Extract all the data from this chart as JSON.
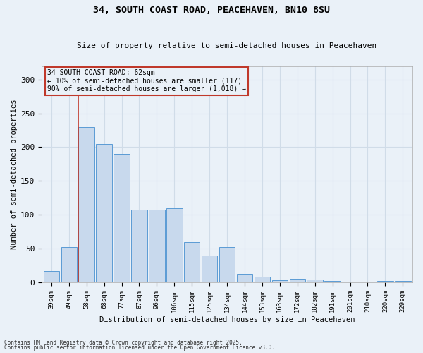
{
  "title1": "34, SOUTH COAST ROAD, PEACEHAVEN, BN10 8SU",
  "title2": "Size of property relative to semi-detached houses in Peacehaven",
  "xlabel": "Distribution of semi-detached houses by size in Peacehaven",
  "ylabel": "Number of semi-detached properties",
  "bar_color": "#c8d9ed",
  "bar_edge_color": "#5b9bd5",
  "categories": [
    "39sqm",
    "49sqm",
    "58sqm",
    "68sqm",
    "77sqm",
    "87sqm",
    "96sqm",
    "106sqm",
    "115sqm",
    "125sqm",
    "134sqm",
    "144sqm",
    "153sqm",
    "163sqm",
    "172sqm",
    "182sqm",
    "191sqm",
    "201sqm",
    "210sqm",
    "220sqm",
    "229sqm"
  ],
  "values": [
    17,
    52,
    230,
    205,
    190,
    108,
    108,
    110,
    60,
    40,
    52,
    13,
    8,
    3,
    5,
    4,
    2,
    1,
    1,
    2,
    2
  ],
  "property_bar_index": 2,
  "annotation_title": "34 SOUTH COAST ROAD: 62sqm",
  "annotation_line1": "← 10% of semi-detached houses are smaller (117)",
  "annotation_line2": "90% of semi-detached houses are larger (1,018) →",
  "vline_color": "#c0392b",
  "annotation_box_edge": "#c0392b",
  "grid_color": "#d0dce8",
  "bg_color": "#eaf1f8",
  "ylim": [
    0,
    320
  ],
  "yticks": [
    0,
    50,
    100,
    150,
    200,
    250,
    300
  ],
  "footnote1": "Contains HM Land Registry data © Crown copyright and database right 2025.",
  "footnote2": "Contains public sector information licensed under the Open Government Licence v3.0."
}
